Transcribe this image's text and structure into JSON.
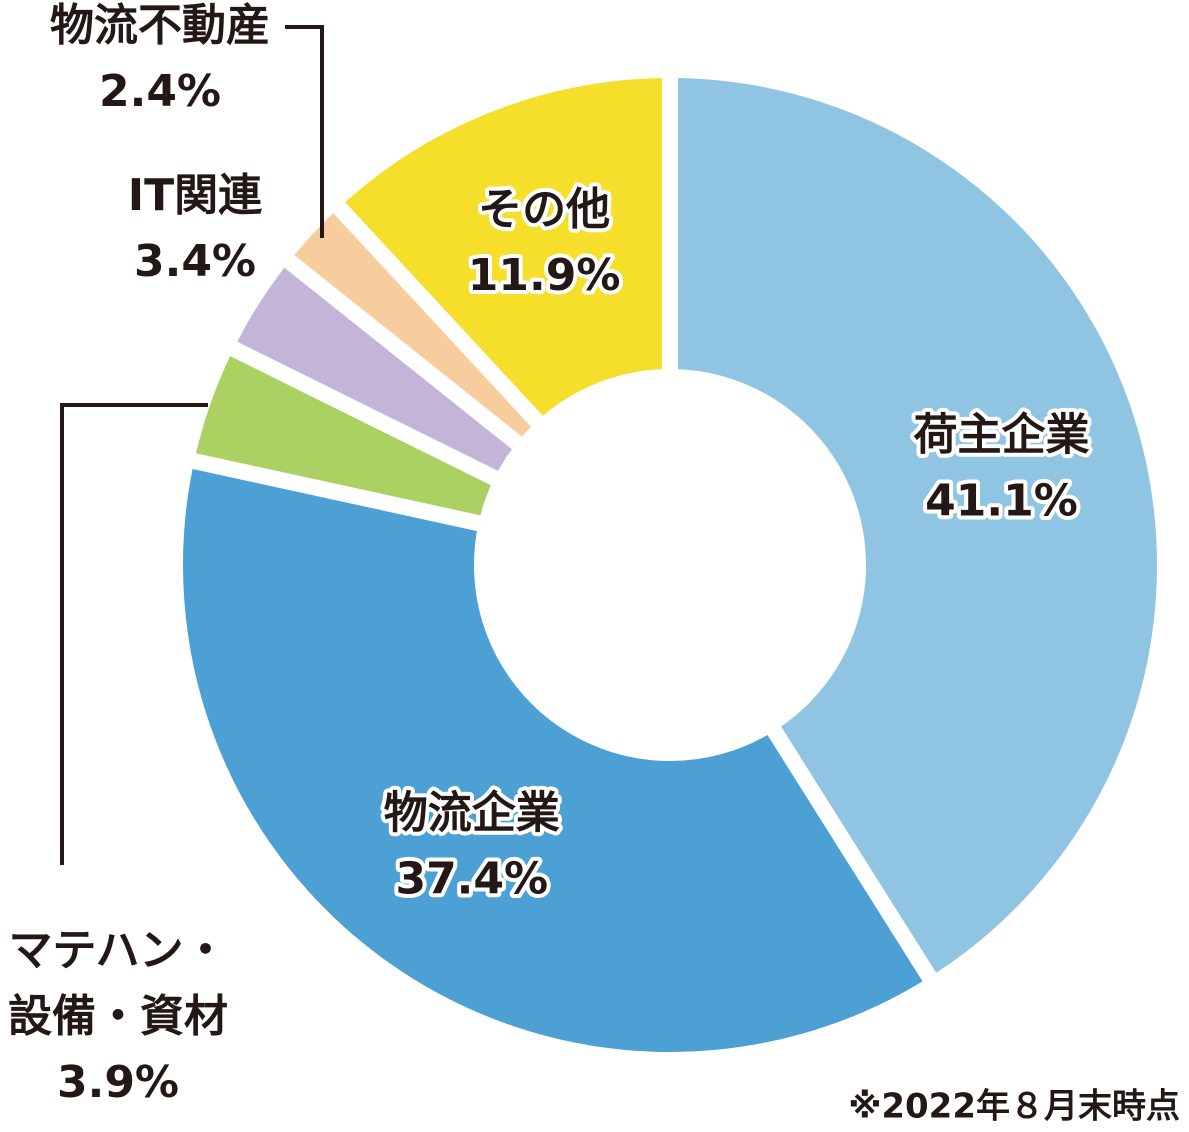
{
  "chart_data": {
    "type": "donut",
    "categories": [
      "荷主企業",
      "物流企業",
      "マテハン・\n設備・資材",
      "IT関連",
      "物流不動産",
      "その他"
    ],
    "values": [
      41.1,
      37.4,
      3.9,
      3.4,
      2.4,
      11.9
    ],
    "value_labels": [
      "41.1%",
      "37.4%",
      "3.9%",
      "3.4%",
      "2.4%",
      "11.9%"
    ],
    "colors": [
      "#8fc5e3",
      "#4ca0d4",
      "#acd163",
      "#c4b5d8",
      "#f8cd9d",
      "#f5df2a"
    ],
    "note": "※2022年８月末時点"
  }
}
